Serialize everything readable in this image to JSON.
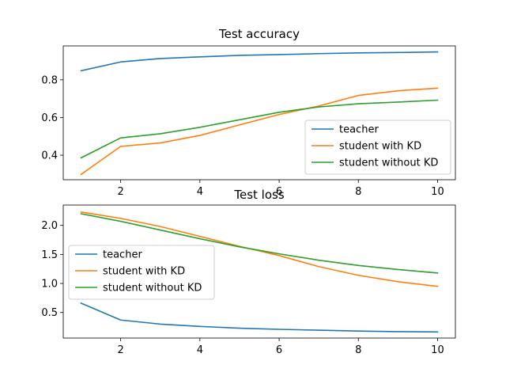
{
  "chart_data": [
    {
      "type": "line",
      "title": "Test accuracy",
      "xlabel": "",
      "ylabel": "",
      "x": [
        1,
        2,
        3,
        4,
        5,
        6,
        7,
        8,
        9,
        10
      ],
      "xlim": [
        0.55,
        10.45
      ],
      "ylim": [
        0.27,
        0.98
      ],
      "xticks": [
        2,
        4,
        6,
        8,
        10
      ],
      "yticks": [
        0.4,
        0.6,
        0.8
      ],
      "ytick_labels": [
        "0.4",
        "0.6",
        "0.8"
      ],
      "xtick_labels": [
        "2",
        "4",
        "6",
        "8",
        "10"
      ],
      "grid": false,
      "legend_position": "lower-right",
      "series": [
        {
          "name": "teacher",
          "color": "#1f77b4",
          "values": [
            0.848,
            0.895,
            0.913,
            0.922,
            0.93,
            0.934,
            0.939,
            0.943,
            0.945,
            0.948
          ]
        },
        {
          "name": "student with KD",
          "color": "#ff7f0e",
          "values": [
            0.298,
            0.447,
            0.465,
            0.505,
            0.561,
            0.616,
            0.661,
            0.717,
            0.742,
            0.756
          ]
        },
        {
          "name": "student without KD",
          "color": "#2ca02c",
          "values": [
            0.386,
            0.492,
            0.514,
            0.548,
            0.588,
            0.628,
            0.656,
            0.673,
            0.682,
            0.692
          ]
        }
      ]
    },
    {
      "type": "line",
      "title": "Test loss",
      "xlabel": "",
      "ylabel": "",
      "x": [
        1,
        2,
        3,
        4,
        5,
        6,
        7,
        8,
        9,
        10
      ],
      "xlim": [
        0.55,
        10.45
      ],
      "ylim": [
        0.06,
        2.35
      ],
      "xticks": [
        2,
        4,
        6,
        8,
        10
      ],
      "yticks": [
        0.5,
        1.0,
        1.5,
        2.0
      ],
      "ytick_labels": [
        "0.5",
        "1.0",
        "1.5",
        "2.0"
      ],
      "xtick_labels": [
        "2",
        "4",
        "6",
        "8",
        "10"
      ],
      "grid": false,
      "legend_position": "center-left",
      "series": [
        {
          "name": "teacher",
          "color": "#1f77b4",
          "values": [
            0.66,
            0.37,
            0.3,
            0.26,
            0.23,
            0.21,
            0.195,
            0.18,
            0.17,
            0.165
          ]
        },
        {
          "name": "student with KD",
          "color": "#ff7f0e",
          "values": [
            2.23,
            2.12,
            1.98,
            1.81,
            1.64,
            1.48,
            1.29,
            1.14,
            1.03,
            0.95
          ]
        },
        {
          "name": "student without KD",
          "color": "#2ca02c",
          "values": [
            2.2,
            2.07,
            1.92,
            1.77,
            1.63,
            1.51,
            1.4,
            1.31,
            1.24,
            1.18
          ]
        }
      ]
    }
  ]
}
